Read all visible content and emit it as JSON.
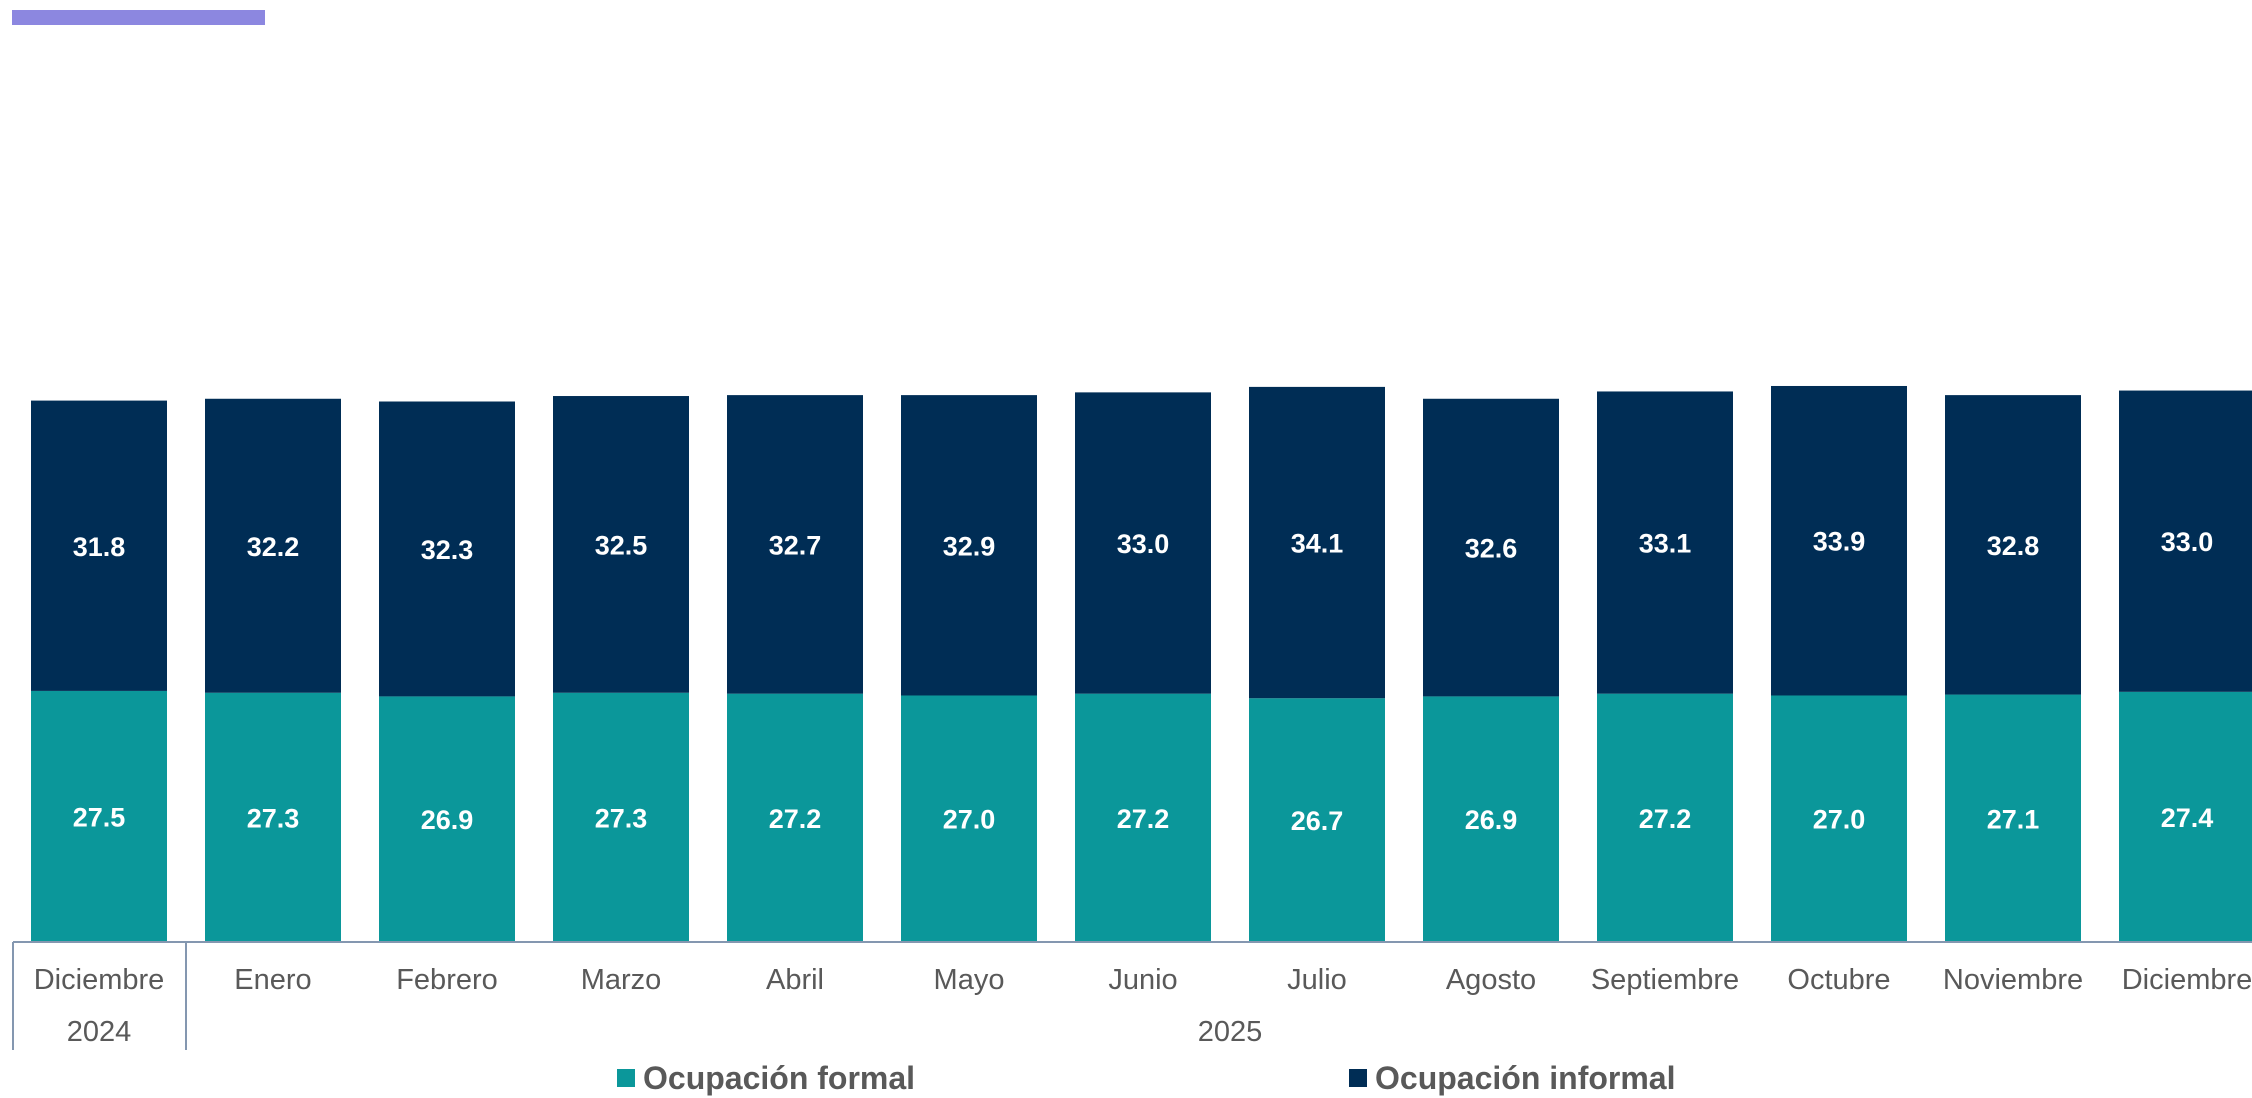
{
  "chart_data": {
    "type": "bar",
    "stacked": true,
    "categories": [
      "Diciembre",
      "Enero",
      "Febrero",
      "Marzo",
      "Abril",
      "Mayo",
      "Junio",
      "Julio",
      "Agosto",
      "Septiembre",
      "Octubre",
      "Noviembre",
      "Diciembre"
    ],
    "year_groups": [
      {
        "label": "2024",
        "count": 1
      },
      {
        "label": "2025",
        "count": 12
      }
    ],
    "series": [
      {
        "name": "Ocupación formal",
        "color": "#0B979A",
        "values": [
          27.5,
          27.3,
          26.9,
          27.3,
          27.2,
          27.0,
          27.2,
          26.7,
          26.9,
          27.2,
          27.0,
          27.1,
          27.4
        ],
        "labels": [
          "27.5",
          "27.3",
          "26.9",
          "27.3",
          "27.2",
          "27.0",
          "27.2",
          "26.7",
          "26.9",
          "27.2",
          "27.0",
          "27.1",
          "27.4"
        ]
      },
      {
        "name": "Ocupación informal",
        "color": "#002D55",
        "values": [
          31.8,
          32.2,
          32.3,
          32.5,
          32.7,
          32.9,
          33.0,
          34.1,
          32.6,
          33.1,
          33.9,
          32.8,
          33.0
        ],
        "labels": [
          "31.8",
          "32.2",
          "32.3",
          "32.5",
          "32.7",
          "32.9",
          "33.0",
          "34.1",
          "32.6",
          "33.1",
          "33.9",
          "32.8",
          "33.0"
        ]
      }
    ],
    "title": "",
    "xlabel": "",
    "ylabel": "",
    "grid": false,
    "legend_position": "bottom",
    "colors": {
      "label_text": "#595959",
      "axis_line": "#8497B0",
      "accent_strip": "#8C87E0"
    }
  }
}
